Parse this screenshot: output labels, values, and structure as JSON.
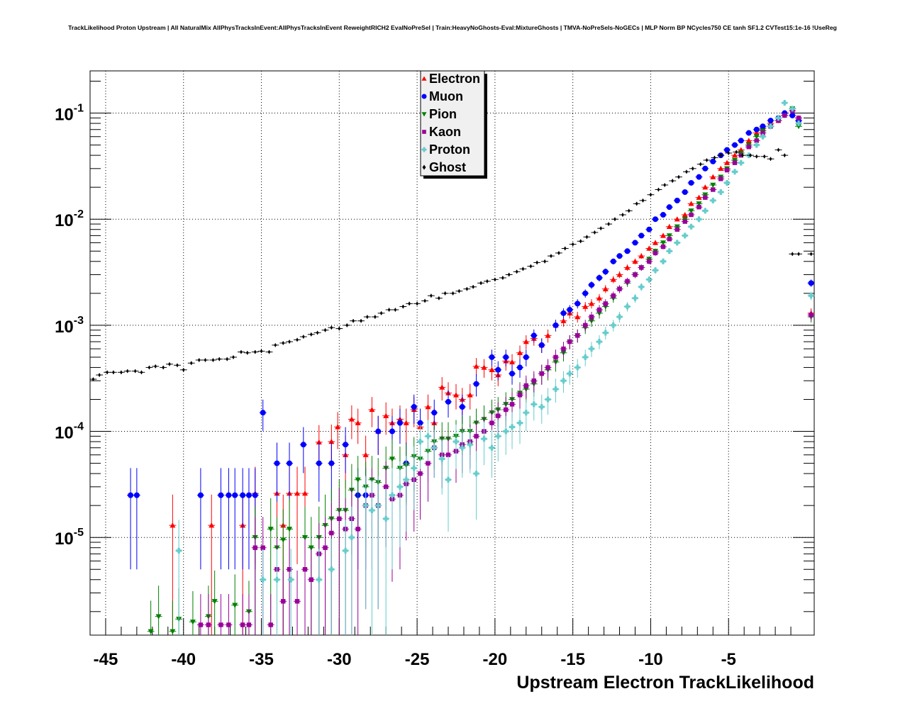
{
  "chart_data": {
    "type": "scatter",
    "title": "TrackLikelihood Proton Upstream | All NaturalMix AllPhysTracksInEvent:AllPhysTracksInEvent ReweightRICH2 EvalNoPreSel | Train:HeavyNoGhosts-Eval:MixtureGhosts | TMVA-NoPreSels-NoGECs | MLP Norm BP NCycles750 CE tanh SF1.2 CVTest15:1e-16 !UseReg",
    "xlabel": "Upstream Electron TrackLikelihood",
    "ylabel": "",
    "xlim": [
      -46,
      0.5
    ],
    "ylim": [
      1.2e-06,
      0.25
    ],
    "y_scale": "log",
    "grid": true,
    "legend_position": "top-center",
    "x_ticks": [
      -45,
      -40,
      -35,
      -30,
      -25,
      -20,
      -15,
      -10,
      -5
    ],
    "x_tick_labels": [
      "-45",
      "-40",
      "-35",
      "-30",
      "-25",
      "-20",
      "-15",
      "-10",
      "-5"
    ],
    "y_ticks": [
      {
        "value": 0.1,
        "base": "10",
        "exp": "-1"
      },
      {
        "value": 0.01,
        "base": "10",
        "exp": "-2"
      },
      {
        "value": 0.001,
        "base": "10",
        "exp": "-3"
      },
      {
        "value": 0.0001,
        "base": "10",
        "exp": "-4"
      },
      {
        "value": 1e-05,
        "base": "10",
        "exp": "-5"
      }
    ],
    "series": [
      {
        "name": "Electron",
        "color": "#ff0000",
        "marker": "triangle-up",
        "x": [
          -40.7,
          -38.2,
          -36.2,
          -35.4,
          -34.0,
          -33.6,
          -33.2,
          -32.7,
          -32.2,
          -31.3,
          -30.5,
          -30.1,
          -29.6,
          -29.2,
          -28.8,
          -28.3,
          -27.9,
          -27.5,
          -27.0,
          -26.6,
          -26.1,
          -25.7,
          -25.2,
          -24.8,
          -24.3,
          -23.9,
          -23.4,
          -23.0,
          -22.5,
          -22.1,
          -21.6,
          -21.2,
          -20.7,
          -20.2,
          -19.8,
          -19.3,
          -18.9,
          -18.4,
          -18.0,
          -17.5,
          -17.0,
          -16.6,
          -16.1,
          -15.6,
          -15.2,
          -14.7,
          -14.2,
          -13.8,
          -13.3,
          -12.9,
          -12.4,
          -12.0,
          -11.5,
          -11.0,
          -10.6,
          -10.1,
          -9.7,
          -9.2,
          -8.8,
          -8.3,
          -7.8,
          -7.4,
          -6.9,
          -6.5,
          -6.0,
          -5.5,
          -5.1,
          -4.6,
          -4.2,
          -3.7,
          -3.2,
          -2.8,
          -2.3,
          -1.8,
          -1.4,
          -0.9,
          -0.5,
          0.3
        ],
        "y": [
          1.3e-05,
          1.3e-05,
          1.3e-05,
          2.6e-05,
          2.6e-05,
          1.3e-05,
          2.6e-05,
          2.6e-05,
          2.6e-05,
          7.9e-05,
          8e-05,
          0.00011,
          6e-05,
          0.00013,
          0.00012,
          6e-05,
          0.00016,
          0.0001,
          0.00014,
          0.00012,
          0.00013,
          0.00012,
          0.00016,
          0.00011,
          0.00017,
          0.00012,
          0.00026,
          0.00023,
          0.00022,
          0.0002,
          0.00022,
          0.00041,
          0.0004,
          0.00038,
          0.00034,
          0.00046,
          0.00045,
          0.00055,
          0.0007,
          0.00075,
          0.00065,
          0.0008,
          0.001,
          0.0011,
          0.0013,
          0.0012,
          0.0015,
          0.0016,
          0.0018,
          0.0022,
          0.0027,
          0.003,
          0.0035,
          0.004,
          0.0045,
          0.0053,
          0.006,
          0.007,
          0.0085,
          0.01,
          0.011,
          0.014,
          0.016,
          0.02,
          0.025,
          0.03,
          0.034,
          0.04,
          0.045,
          0.055,
          0.065,
          0.072,
          0.08,
          0.085,
          0.1,
          0.11,
          0.09,
          0.0013
        ]
      },
      {
        "name": "Muon",
        "color": "#0000ff",
        "marker": "circle",
        "x": [
          -43.4,
          -43.0,
          -38.9,
          -37.6,
          -37.1,
          -36.7,
          -36.2,
          -35.8,
          -35.4,
          -34.9,
          -34.0,
          -33.2,
          -32.3,
          -31.3,
          -30.5,
          -29.6,
          -28.8,
          -28.3,
          -27.5,
          -26.6,
          -26.1,
          -25.7,
          -25.2,
          -24.8,
          -23.9,
          -23.0,
          -22.1,
          -21.2,
          -20.2,
          -19.8,
          -19.3,
          -18.9,
          -18.4,
          -18.0,
          -17.5,
          -17.0,
          -16.1,
          -15.6,
          -15.2,
          -14.7,
          -14.2,
          -13.8,
          -13.3,
          -12.9,
          -12.4,
          -12.0,
          -11.5,
          -11.0,
          -10.6,
          -10.1,
          -9.7,
          -9.2,
          -8.8,
          -8.3,
          -7.8,
          -7.4,
          -6.9,
          -6.5,
          -6.0,
          -5.5,
          -5.1,
          -4.6,
          -4.2,
          -3.7,
          -3.2,
          -2.8,
          -2.3,
          -1.8,
          -1.4,
          -0.9,
          -0.5,
          0.3
        ],
        "y": [
          2.5e-05,
          2.5e-05,
          2.5e-05,
          2.5e-05,
          2.5e-05,
          2.5e-05,
          2.5e-05,
          2.5e-05,
          2.5e-05,
          0.00015,
          5e-05,
          5e-05,
          7.5e-05,
          5e-05,
          5e-05,
          7.5e-05,
          2.5e-05,
          2.5e-05,
          0.0001,
          0.0001,
          0.00012,
          5e-05,
          0.00017,
          0.00012,
          0.00015,
          0.00019,
          0.00017,
          0.00028,
          0.0005,
          0.00038,
          0.0005,
          0.00035,
          0.0004,
          0.0005,
          0.0008,
          0.00065,
          0.001,
          0.0013,
          0.0014,
          0.0016,
          0.002,
          0.0024,
          0.0028,
          0.0032,
          0.004,
          0.0045,
          0.005,
          0.006,
          0.007,
          0.008,
          0.01,
          0.011,
          0.013,
          0.015,
          0.018,
          0.022,
          0.025,
          0.03,
          0.035,
          0.04,
          0.045,
          0.05,
          0.055,
          0.065,
          0.07,
          0.075,
          0.085,
          0.09,
          0.1,
          0.095,
          0.085,
          0.0025
        ]
      },
      {
        "name": "Pion",
        "color": "#008000",
        "marker": "triangle-down",
        "x": [
          -42.1,
          -41.6,
          -40.7,
          -40.3,
          -39.4,
          -38.4,
          -38.0,
          -36.7,
          -35.8,
          -35.4,
          -34.4,
          -34.0,
          -33.6,
          -33.2,
          -32.2,
          -31.8,
          -31.3,
          -30.9,
          -30.5,
          -30.0,
          -29.6,
          -29.2,
          -28.8,
          -28.3,
          -27.9,
          -27.5,
          -27.0,
          -26.6,
          -26.1,
          -25.7,
          -25.2,
          -24.8,
          -24.3,
          -23.9,
          -23.4,
          -23.0,
          -22.5,
          -22.1,
          -21.6,
          -21.2,
          -20.7,
          -20.2,
          -19.8,
          -19.3,
          -18.9,
          -18.4,
          -18.0,
          -17.5,
          -17.0,
          -16.6,
          -16.1,
          -15.6,
          -15.2,
          -14.7,
          -14.2,
          -13.8,
          -13.3,
          -12.9,
          -12.4,
          -12.0,
          -11.5,
          -11.0,
          -10.6,
          -10.1,
          -9.7,
          -9.2,
          -8.8,
          -8.3,
          -7.8,
          -7.4,
          -6.9,
          -6.5,
          -6.0,
          -5.5,
          -5.1,
          -4.6,
          -4.2,
          -3.7,
          -3.2,
          -2.8,
          -2.3,
          -1.8,
          -1.4,
          -0.9,
          -0.5,
          0.3
        ],
        "y": [
          1.3e-06,
          1.8e-06,
          1.3e-06,
          1.7e-06,
          1.6e-06,
          1.8e-06,
          2.5e-06,
          2.3e-06,
          2e-06,
          1e-05,
          1.2e-05,
          8e-06,
          9.5e-06,
          1.2e-05,
          1e-05,
          8e-06,
          1e-05,
          1.3e-05,
          1.5e-05,
          1.8e-05,
          1.8e-05,
          2.8e-05,
          3.5e-05,
          3e-05,
          3.5e-05,
          3.3e-05,
          4.5e-05,
          5.5e-05,
          4.5e-05,
          4.8e-05,
          5.8e-05,
          5.5e-05,
          6.5e-05,
          8e-05,
          8.5e-05,
          8.5e-05,
          9e-05,
          0.0001,
          0.0001,
          0.00012,
          0.00013,
          0.00015,
          0.00016,
          0.00018,
          0.0002,
          0.00023,
          0.00025,
          0.00028,
          0.00035,
          0.00038,
          0.00045,
          0.00055,
          0.0007,
          0.0008,
          0.00095,
          0.0011,
          0.0013,
          0.0015,
          0.0018,
          0.0022,
          0.0025,
          0.003,
          0.0035,
          0.0042,
          0.005,
          0.006,
          0.007,
          0.0085,
          0.01,
          0.012,
          0.014,
          0.017,
          0.021,
          0.025,
          0.03,
          0.036,
          0.042,
          0.05,
          0.06,
          0.068,
          0.075,
          0.085,
          0.095,
          0.11,
          0.075,
          0.0012
        ]
      },
      {
        "name": "Kaon",
        "color": "#990099",
        "marker": "square",
        "x": [
          -38.9,
          -38.4,
          -37.6,
          -37.1,
          -36.2,
          -35.8,
          -35.4,
          -34.9,
          -34.4,
          -34.0,
          -33.6,
          -33.2,
          -32.7,
          -32.2,
          -31.8,
          -31.3,
          -30.9,
          -30.5,
          -30.0,
          -29.6,
          -29.2,
          -28.8,
          -28.3,
          -27.9,
          -27.5,
          -27.0,
          -26.6,
          -26.1,
          -25.7,
          -25.2,
          -24.8,
          -24.3,
          -23.9,
          -23.4,
          -23.0,
          -22.5,
          -22.1,
          -21.6,
          -21.2,
          -20.7,
          -20.2,
          -19.8,
          -19.3,
          -18.9,
          -18.4,
          -18.0,
          -17.5,
          -17.0,
          -16.6,
          -16.1,
          -15.6,
          -15.2,
          -14.7,
          -14.2,
          -13.8,
          -13.3,
          -12.9,
          -12.4,
          -12.0,
          -11.5,
          -11.0,
          -10.6,
          -10.1,
          -9.7,
          -9.2,
          -8.8,
          -8.3,
          -7.8,
          -7.4,
          -6.9,
          -6.5,
          -6.0,
          -5.5,
          -5.1,
          -4.6,
          -4.2,
          -3.7,
          -3.2,
          -2.8,
          -2.3,
          -1.8,
          -1.4,
          -0.9,
          -0.5,
          0.3
        ],
        "y": [
          1.5e-06,
          1.5e-06,
          1.5e-06,
          1.5e-06,
          1.5e-06,
          1.5e-06,
          8e-06,
          8e-06,
          1.5e-06,
          5e-06,
          2.5e-06,
          5e-06,
          2.5e-06,
          5e-06,
          4e-06,
          7e-06,
          8e-06,
          1.1e-05,
          1.5e-05,
          1.2e-05,
          1.5e-05,
          1.2e-05,
          2e-05,
          2.5e-05,
          2e-05,
          3e-05,
          2.3e-05,
          2.5e-05,
          3.2e-05,
          3.5e-05,
          4e-05,
          5e-05,
          7e-05,
          6e-05,
          6e-05,
          6.5e-05,
          7.5e-05,
          8e-05,
          9e-05,
          0.0001,
          0.00012,
          0.00014,
          0.00016,
          0.00018,
          0.00022,
          0.00027,
          0.0003,
          0.00035,
          0.0004,
          0.0005,
          0.0006,
          0.0007,
          0.0008,
          0.001,
          0.0012,
          0.0014,
          0.0016,
          0.0019,
          0.0022,
          0.0026,
          0.003,
          0.0035,
          0.004,
          0.0048,
          0.0055,
          0.0065,
          0.008,
          0.0095,
          0.011,
          0.013,
          0.016,
          0.019,
          0.024,
          0.029,
          0.034,
          0.04,
          0.048,
          0.055,
          0.065,
          0.075,
          0.085,
          0.095,
          0.105,
          0.09,
          0.00125
        ]
      },
      {
        "name": "Proton",
        "color": "#66cccc",
        "marker": "cross",
        "x": [
          -40.3,
          -34.9,
          -34.0,
          -33.1,
          -31.3,
          -30.5,
          -29.6,
          -29.2,
          -28.3,
          -27.9,
          -27.5,
          -27.0,
          -26.6,
          -26.1,
          -25.7,
          -25.2,
          -24.8,
          -24.3,
          -23.9,
          -23.4,
          -23.0,
          -22.5,
          -22.1,
          -21.6,
          -21.2,
          -20.7,
          -20.2,
          -19.8,
          -19.3,
          -18.9,
          -18.4,
          -18.0,
          -17.5,
          -17.0,
          -16.6,
          -16.1,
          -15.6,
          -15.2,
          -14.7,
          -14.2,
          -13.8,
          -13.3,
          -12.9,
          -12.4,
          -12.0,
          -11.5,
          -11.0,
          -10.6,
          -10.1,
          -9.7,
          -9.2,
          -8.8,
          -8.3,
          -7.8,
          -7.4,
          -6.9,
          -6.5,
          -6.0,
          -5.5,
          -5.1,
          -4.6,
          -4.2,
          -3.7,
          -3.2,
          -2.8,
          -2.3,
          -1.8,
          -1.4,
          -0.9,
          -0.5,
          0.3
        ],
        "y": [
          7.5e-06,
          4e-06,
          4e-06,
          4e-06,
          4e-06,
          5e-06,
          7.5e-06,
          1e-05,
          2e-05,
          1.8e-05,
          2e-05,
          1.5e-05,
          2.5e-05,
          3e-05,
          3.5e-05,
          4.5e-05,
          8e-05,
          9e-05,
          7e-05,
          5.5e-05,
          3.5e-05,
          8e-05,
          7e-05,
          7.5e-05,
          4e-05,
          8.5e-05,
          7e-05,
          9e-05,
          0.0001,
          0.00011,
          0.00012,
          0.00015,
          0.00018,
          0.00017,
          0.0002,
          0.00025,
          0.0003,
          0.00035,
          0.0004,
          0.0005,
          0.0006,
          0.0007,
          0.00085,
          0.001,
          0.0012,
          0.0015,
          0.0018,
          0.0023,
          0.0027,
          0.0033,
          0.004,
          0.005,
          0.006,
          0.007,
          0.0085,
          0.01,
          0.012,
          0.015,
          0.018,
          0.022,
          0.028,
          0.034,
          0.04,
          0.05,
          0.06,
          0.075,
          0.09,
          0.125,
          0.11,
          0.08,
          0.0019
        ]
      },
      {
        "name": "Ghost",
        "color": "#000000",
        "marker": "diamond",
        "x": [
          -45.8,
          -45.4,
          -44.9,
          -44.5,
          -44.0,
          -43.6,
          -43.1,
          -42.7,
          -42.2,
          -41.8,
          -41.3,
          -40.9,
          -40.4,
          -40.0,
          -39.5,
          -39.0,
          -38.6,
          -38.1,
          -37.7,
          -37.2,
          -36.8,
          -36.3,
          -35.9,
          -35.4,
          -35.0,
          -34.5,
          -34.1,
          -33.6,
          -33.2,
          -32.7,
          -32.3,
          -31.8,
          -31.4,
          -30.9,
          -30.5,
          -30.0,
          -29.5,
          -29.1,
          -28.6,
          -28.2,
          -27.7,
          -27.3,
          -26.8,
          -26.4,
          -25.9,
          -25.5,
          -25.0,
          -24.5,
          -24.1,
          -23.6,
          -23.2,
          -22.7,
          -22.3,
          -21.8,
          -21.4,
          -20.9,
          -20.5,
          -20.0,
          -19.5,
          -19.1,
          -18.6,
          -18.2,
          -17.7,
          -17.3,
          -16.8,
          -16.4,
          -15.9,
          -15.5,
          -15.0,
          -14.5,
          -14.1,
          -13.6,
          -13.2,
          -12.7,
          -12.3,
          -11.8,
          -11.4,
          -10.9,
          -10.5,
          -10.0,
          -9.5,
          -9.1,
          -8.6,
          -8.2,
          -7.7,
          -7.3,
          -6.8,
          -6.4,
          -5.9,
          -5.5,
          -5.0,
          -4.5,
          -4.1,
          -3.6,
          -3.2,
          -2.7,
          -2.3,
          -1.8,
          -1.4,
          -0.9,
          -0.5,
          0.3
        ],
        "y": [
          0.00031,
          0.00034,
          0.00036,
          0.00036,
          0.00036,
          0.00037,
          0.00037,
          0.00036,
          0.0004,
          0.00041,
          0.0004,
          0.00043,
          0.00042,
          0.00038,
          0.00044,
          0.00047,
          0.00047,
          0.00047,
          0.00048,
          0.00048,
          0.0005,
          0.00056,
          0.00055,
          0.00056,
          0.00057,
          0.00056,
          0.00065,
          0.00068,
          0.0007,
          0.00073,
          0.00078,
          0.00082,
          0.00085,
          0.0009,
          0.00095,
          0.00093,
          0.001,
          0.0011,
          0.0011,
          0.0012,
          0.0012,
          0.0013,
          0.0014,
          0.0014,
          0.0015,
          0.0016,
          0.0016,
          0.0017,
          0.0019,
          0.0018,
          0.002,
          0.002,
          0.0021,
          0.0022,
          0.0023,
          0.0025,
          0.0026,
          0.0027,
          0.0028,
          0.003,
          0.0032,
          0.0034,
          0.0036,
          0.0039,
          0.004,
          0.0045,
          0.0048,
          0.0053,
          0.0058,
          0.0062,
          0.0068,
          0.0075,
          0.0082,
          0.009,
          0.01,
          0.011,
          0.012,
          0.014,
          0.015,
          0.017,
          0.019,
          0.021,
          0.023,
          0.025,
          0.028,
          0.03,
          0.033,
          0.036,
          0.038,
          0.04,
          0.042,
          0.043,
          0.04,
          0.04,
          0.039,
          0.039,
          0.037,
          0.045,
          0.04,
          0.0047,
          0.0047,
          0.0047
        ]
      }
    ]
  }
}
